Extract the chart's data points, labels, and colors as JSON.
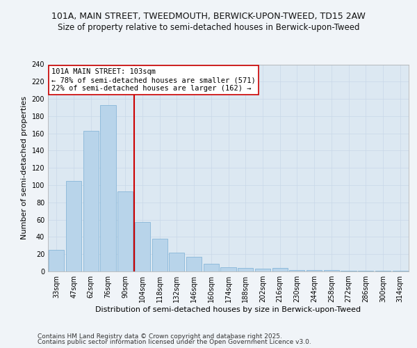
{
  "title1": "101A, MAIN STREET, TWEEDMOUTH, BERWICK-UPON-TWEED, TD15 2AW",
  "title2": "Size of property relative to semi-detached houses in Berwick-upon-Tweed",
  "xlabel": "Distribution of semi-detached houses by size in Berwick-upon-Tweed",
  "ylabel": "Number of semi-detached properties",
  "categories": [
    "33sqm",
    "47sqm",
    "62sqm",
    "76sqm",
    "90sqm",
    "104sqm",
    "118sqm",
    "132sqm",
    "146sqm",
    "160sqm",
    "174sqm",
    "188sqm",
    "202sqm",
    "216sqm",
    "230sqm",
    "244sqm",
    "258sqm",
    "272sqm",
    "286sqm",
    "300sqm",
    "314sqm"
  ],
  "values": [
    25,
    105,
    163,
    193,
    93,
    57,
    38,
    22,
    17,
    9,
    5,
    4,
    3,
    4,
    2,
    2,
    2,
    1,
    1,
    1,
    1
  ],
  "bar_color": "#b8d4ea",
  "bar_edge_color": "#7aafd4",
  "vline_color": "#cc0000",
  "annotation_title": "101A MAIN STREET: 103sqm",
  "annotation_line1": "← 78% of semi-detached houses are smaller (571)",
  "annotation_line2": "22% of semi-detached houses are larger (162) →",
  "annotation_box_color": "#ffffff",
  "annotation_box_edge": "#cc0000",
  "grid_color": "#c8d8e8",
  "background_color": "#dce8f2",
  "fig_background": "#f0f4f8",
  "ylim": [
    0,
    240
  ],
  "yticks": [
    0,
    20,
    40,
    60,
    80,
    100,
    120,
    140,
    160,
    180,
    200,
    220,
    240
  ],
  "footer1": "Contains HM Land Registry data © Crown copyright and database right 2025.",
  "footer2": "Contains public sector information licensed under the Open Government Licence v3.0.",
  "title_fontsize": 9,
  "subtitle_fontsize": 8.5,
  "axis_label_fontsize": 8,
  "tick_fontsize": 7,
  "annotation_fontsize": 7.5,
  "footer_fontsize": 6.5
}
